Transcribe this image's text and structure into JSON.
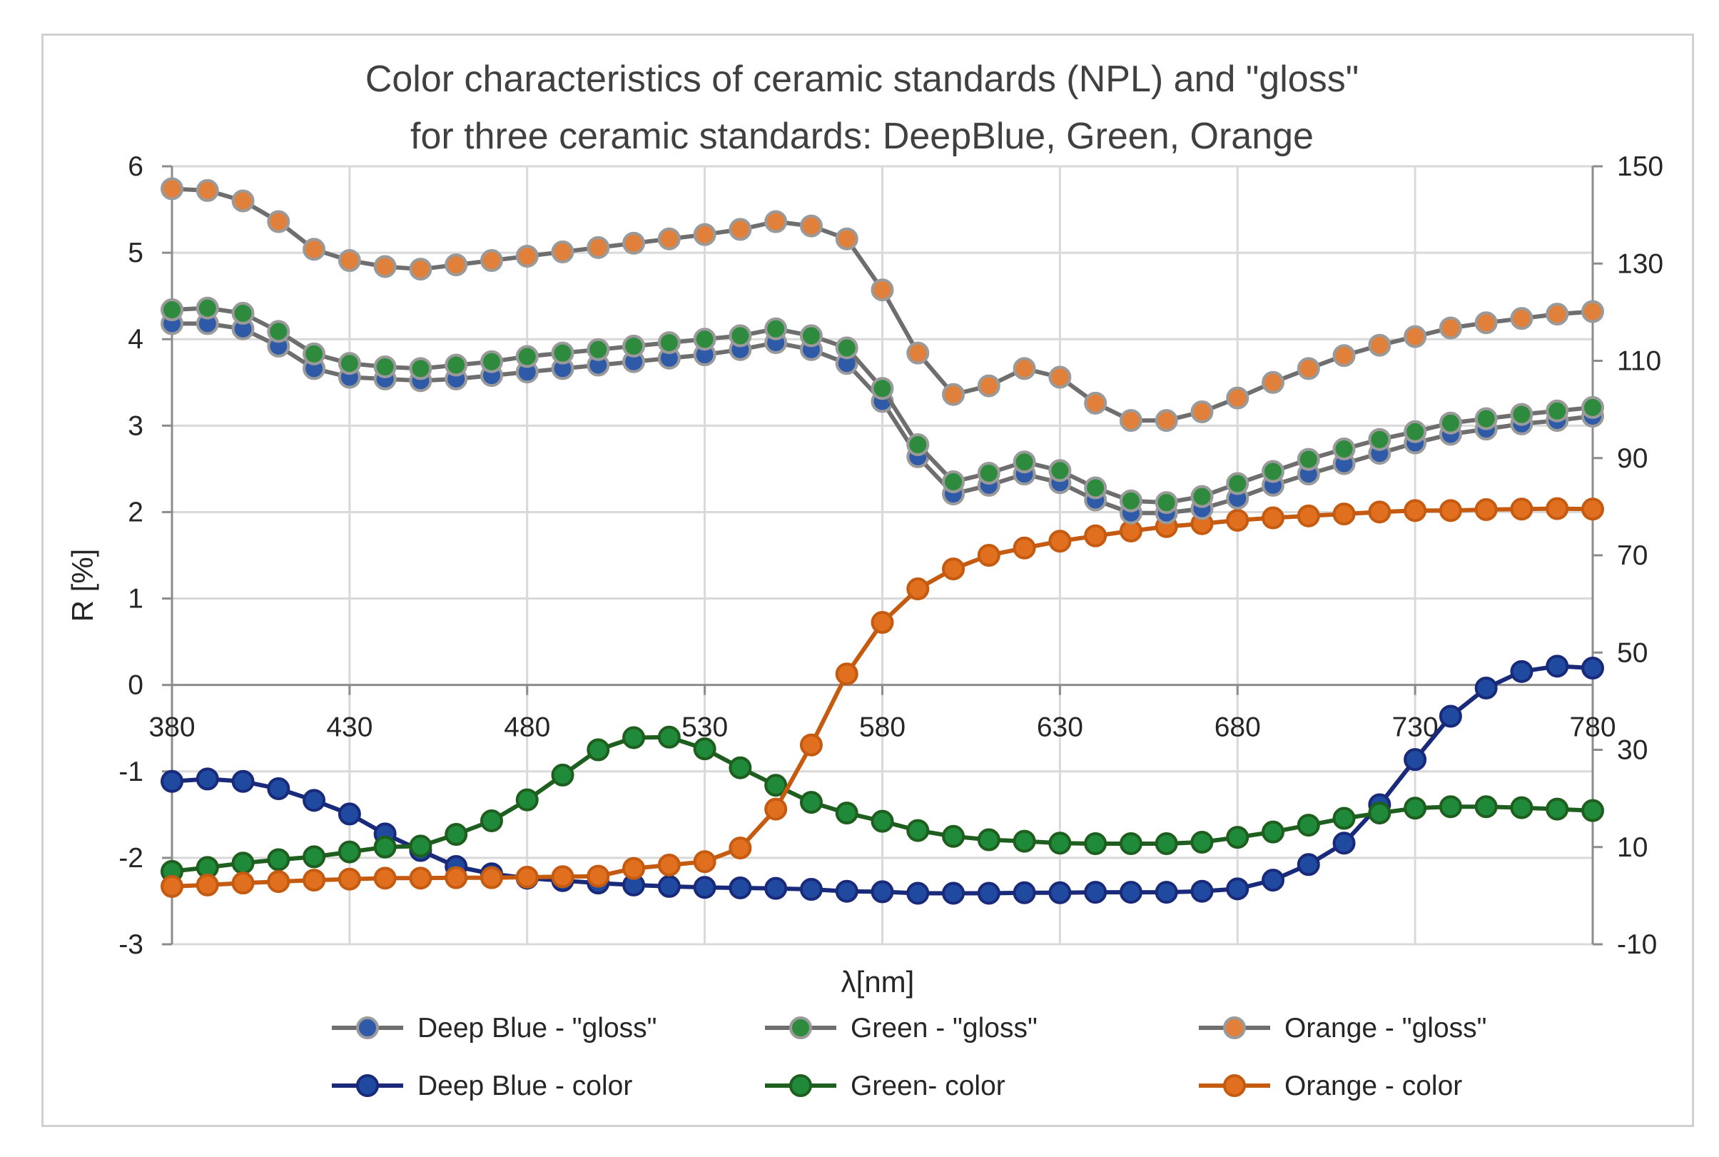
{
  "chart_data": {
    "type": "line",
    "title": [
      "Color characteristics of ceramic standards (NPL) and  \"gloss\"",
      "for three ceramic standards: DeepBlue, Green, Orange"
    ],
    "xlabel": "λ[nm]",
    "ylabel": "R [%]",
    "xlim": [
      380,
      780
    ],
    "x_ticks": [
      380,
      430,
      480,
      530,
      580,
      630,
      680,
      730,
      780
    ],
    "ylim_left": [
      -3,
      6
    ],
    "y_ticks_left": [
      6,
      5,
      4,
      3,
      2,
      1,
      0,
      -1,
      -2,
      -3
    ],
    "ylim_right": [
      -10,
      150
    ],
    "y_ticks_right": [
      150,
      130,
      110,
      90,
      70,
      50,
      30,
      10,
      -10
    ],
    "grid": true,
    "legend_position": "bottom",
    "x": [
      380,
      390,
      400,
      410,
      420,
      430,
      440,
      450,
      460,
      470,
      480,
      490,
      500,
      510,
      520,
      530,
      540,
      550,
      560,
      570,
      580,
      590,
      600,
      610,
      620,
      630,
      640,
      650,
      660,
      670,
      680,
      690,
      700,
      710,
      720,
      730,
      740,
      750,
      760,
      770,
      780
    ],
    "series": [
      {
        "name": "Deep Blue - \"gloss\"",
        "axis": "left",
        "line_color": "#6e6e6e",
        "marker_color": "#2e5aa8",
        "values": [
          4.18,
          4.18,
          4.12,
          3.92,
          3.66,
          3.56,
          3.54,
          3.52,
          3.54,
          3.58,
          3.62,
          3.66,
          3.7,
          3.74,
          3.78,
          3.82,
          3.88,
          3.96,
          3.88,
          3.72,
          3.28,
          2.64,
          2.21,
          2.31,
          2.44,
          2.34,
          2.14,
          1.99,
          1.99,
          2.04,
          2.16,
          2.31,
          2.44,
          2.56,
          2.68,
          2.8,
          2.9,
          2.96,
          3.02,
          3.06,
          3.11
        ]
      },
      {
        "name": "Green - \"gloss\"",
        "axis": "left",
        "line_color": "#6e6e6e",
        "marker_color": "#2e8b3e",
        "values": [
          4.34,
          4.36,
          4.3,
          4.09,
          3.83,
          3.72,
          3.68,
          3.66,
          3.7,
          3.74,
          3.8,
          3.84,
          3.88,
          3.92,
          3.96,
          4.0,
          4.04,
          4.12,
          4.04,
          3.9,
          3.43,
          2.78,
          2.35,
          2.45,
          2.58,
          2.48,
          2.28,
          2.13,
          2.11,
          2.18,
          2.33,
          2.47,
          2.61,
          2.73,
          2.84,
          2.93,
          3.03,
          3.08,
          3.13,
          3.17,
          3.21
        ]
      },
      {
        "name": "Orange - \"gloss\"",
        "axis": "left",
        "line_color": "#6e6e6e",
        "marker_color": "#e0803a",
        "values": [
          5.74,
          5.72,
          5.6,
          5.36,
          5.04,
          4.91,
          4.84,
          4.81,
          4.86,
          4.91,
          4.96,
          5.01,
          5.06,
          5.11,
          5.16,
          5.21,
          5.27,
          5.36,
          5.31,
          5.16,
          4.57,
          3.84,
          3.36,
          3.46,
          3.66,
          3.56,
          3.26,
          3.06,
          3.06,
          3.16,
          3.32,
          3.5,
          3.66,
          3.81,
          3.93,
          4.03,
          4.13,
          4.19,
          4.24,
          4.29,
          4.32
        ]
      },
      {
        "name": "Deep Blue - color",
        "axis": "right",
        "line_color": "#1a2a7a",
        "marker_color": "#1f4aa0",
        "values": [
          23.5,
          24.0,
          23.5,
          22.0,
          19.6,
          16.8,
          12.7,
          9.3,
          6.0,
          4.5,
          3.6,
          3.1,
          2.6,
          2.2,
          1.9,
          1.7,
          1.6,
          1.5,
          1.3,
          0.9,
          0.8,
          0.5,
          0.5,
          0.5,
          0.6,
          0.6,
          0.7,
          0.7,
          0.7,
          0.9,
          1.4,
          3.2,
          6.4,
          10.8,
          18.7,
          28.0,
          36.9,
          42.7,
          46.1,
          47.2,
          46.8
        ]
      },
      {
        "name": "Green- color",
        "axis": "right",
        "line_color": "#1e5e1e",
        "marker_color": "#1f8a3a",
        "values": [
          5.0,
          5.8,
          6.7,
          7.4,
          8.0,
          9.0,
          10.0,
          10.2,
          12.6,
          15.4,
          19.7,
          24.8,
          30.0,
          32.5,
          32.6,
          30.2,
          26.3,
          22.7,
          19.2,
          17.0,
          15.3,
          13.4,
          12.2,
          11.5,
          11.2,
          10.8,
          10.7,
          10.7,
          10.7,
          11.0,
          12.0,
          13.1,
          14.5,
          15.9,
          17.0,
          18.0,
          18.3,
          18.3,
          18.1,
          17.8,
          17.5
        ]
      },
      {
        "name": "Orange - color",
        "axis": "right",
        "line_color": "#c55a11",
        "marker_color": "#e07020",
        "values": [
          1.9,
          2.2,
          2.6,
          2.9,
          3.2,
          3.4,
          3.6,
          3.6,
          3.7,
          3.7,
          3.8,
          3.9,
          4.0,
          5.6,
          6.3,
          7.0,
          9.8,
          17.8,
          31.0,
          45.6,
          56.2,
          63.1,
          67.2,
          70.0,
          71.5,
          72.9,
          74.0,
          75.0,
          75.9,
          76.5,
          77.2,
          77.7,
          78.1,
          78.5,
          78.9,
          79.2,
          79.2,
          79.4,
          79.5,
          79.6,
          79.5
        ]
      }
    ]
  }
}
